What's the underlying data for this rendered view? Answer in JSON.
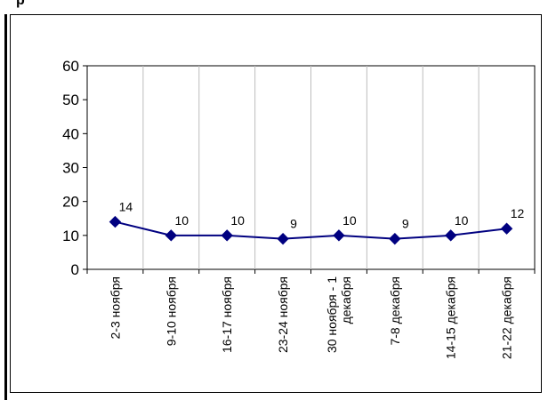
{
  "page": {
    "top_text": "р"
  },
  "chart_data": {
    "type": "line",
    "title": "",
    "xlabel": "",
    "ylabel": "",
    "categories": [
      "2-3 ноября",
      "9-10 ноября",
      "16-17 ноября",
      "23-24 ноября",
      "30 ноября - 1 декабря",
      "7-8 декабря",
      "14-15 декабря",
      "21-22 декабря"
    ],
    "category_label_lines": [
      [
        "2-3 ноября"
      ],
      [
        "9-10 ноября"
      ],
      [
        "16-17 ноября"
      ],
      [
        "23-24 ноября"
      ],
      [
        "30 ноября - 1",
        "декабря"
      ],
      [
        "7-8 декабря"
      ],
      [
        "14-15 декабря"
      ],
      [
        "21-22 декабря"
      ]
    ],
    "series": [
      {
        "values": [
          14,
          10,
          10,
          9,
          10,
          9,
          10,
          12
        ],
        "color": "#000080"
      }
    ],
    "ylim": [
      0,
      60
    ],
    "yticks": [
      0,
      10,
      20,
      30,
      40,
      50,
      60
    ],
    "grid": {
      "x": true,
      "y": false
    },
    "legend": "none",
    "marker": "diamond",
    "data_labels": true
  }
}
